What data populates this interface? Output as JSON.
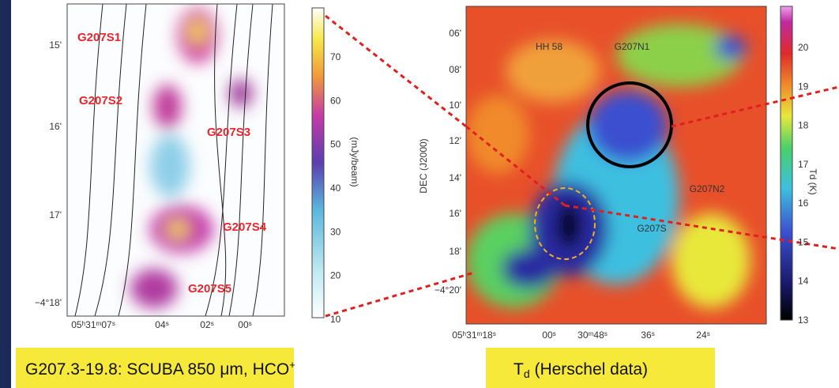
{
  "left_panel": {
    "sources": [
      "G207S1",
      "G207S2",
      "G207S3",
      "G207S4",
      "G207S5"
    ],
    "y_ticks": [
      "15'",
      "16'",
      "17'",
      "−4°18'"
    ],
    "x_ticks": [
      "05ʰ31ᵐ07ˢ",
      "04ˢ",
      "02ˢ",
      "00ˢ"
    ],
    "colorbar": {
      "ticks": [
        70,
        60,
        50,
        40,
        30,
        20,
        10
      ],
      "label": "(mJy/beam)"
    }
  },
  "right_panel": {
    "sources": [
      "HH 58",
      "G207N1",
      "G207N2",
      "G207S"
    ],
    "y_label": "DEC (J2000)",
    "y_ticks": [
      "06'",
      "08'",
      "10'",
      "12'",
      "14'",
      "16'",
      "18'",
      "−4°20'"
    ],
    "x_ticks": [
      "05ʰ31ᵐ18ˢ",
      "00ˢ",
      "30ᵐ48ˢ",
      "36ˢ",
      "24ˢ"
    ],
    "colorbar": {
      "ticks": [
        20,
        19,
        18,
        17,
        16,
        15,
        14,
        13
      ],
      "label": "Td (K)"
    }
  },
  "captions": [
    {
      "text": "G207.3-19.8: SCUBA 850  μm, HCO",
      "sup": "+"
    },
    {
      "text": "T",
      "sub": "d",
      "rest": " (Herschel data)"
    }
  ]
}
